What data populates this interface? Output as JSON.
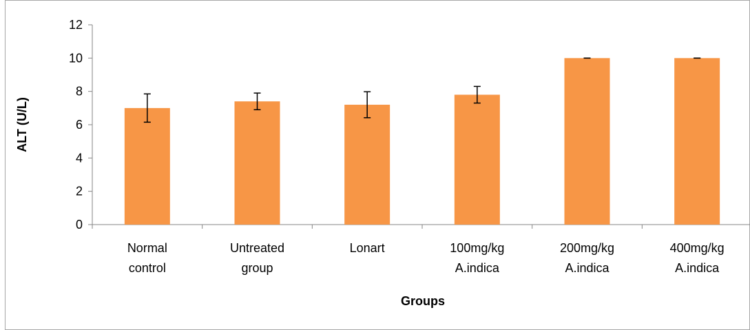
{
  "chart_data": {
    "type": "bar",
    "title": "",
    "xlabel": "Groups",
    "ylabel": "ALT (U/L)",
    "categories": [
      [
        "Normal",
        "control"
      ],
      [
        "Untreated",
        "group"
      ],
      [
        "Lonart"
      ],
      [
        "100mg/kg",
        "A.indica"
      ],
      [
        "200mg/kg",
        "A.indica"
      ],
      [
        "400mg/kg",
        "A.indica"
      ]
    ],
    "values": [
      7.0,
      7.4,
      7.2,
      7.8,
      10.0,
      10.0
    ],
    "error": [
      0.85,
      0.5,
      0.78,
      0.5,
      0.0,
      0.0
    ],
    "ylim": [
      0,
      12
    ],
    "yticks": [
      "0",
      "2",
      "4",
      "6",
      "8",
      "10",
      "12"
    ],
    "grid": false,
    "legend": "none",
    "bar_color": "#F79646",
    "axis_color": "#868686",
    "border_color": "#A6A6A6"
  }
}
